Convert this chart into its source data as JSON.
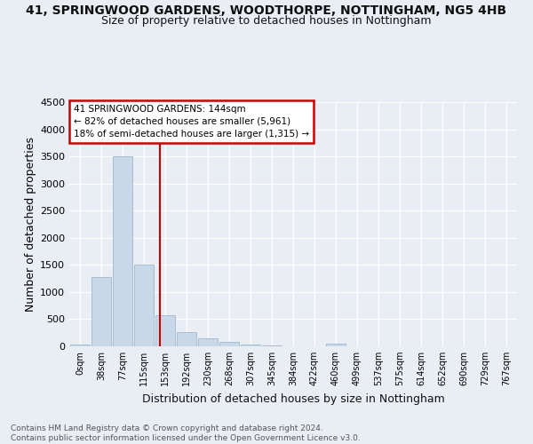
{
  "title1": "41, SPRINGWOOD GARDENS, WOODTHORPE, NOTTINGHAM, NG5 4HB",
  "title2": "Size of property relative to detached houses in Nottingham",
  "xlabel": "Distribution of detached houses by size in Nottingham",
  "ylabel": "Number of detached properties",
  "footnote": "Contains HM Land Registry data © Crown copyright and database right 2024.\nContains public sector information licensed under the Open Government Licence v3.0.",
  "bar_labels": [
    "0sqm",
    "38sqm",
    "77sqm",
    "115sqm",
    "153sqm",
    "192sqm",
    "230sqm",
    "268sqm",
    "307sqm",
    "345sqm",
    "384sqm",
    "422sqm",
    "460sqm",
    "499sqm",
    "537sqm",
    "575sqm",
    "614sqm",
    "652sqm",
    "690sqm",
    "729sqm",
    "767sqm"
  ],
  "bar_values": [
    30,
    1280,
    3500,
    1500,
    570,
    255,
    145,
    90,
    40,
    15,
    5,
    5,
    55,
    5,
    0,
    0,
    0,
    0,
    0,
    0,
    0
  ],
  "bar_color": "#c8d8e8",
  "bar_edge_color": "#a0b8cc",
  "annotation_text": "41 SPRINGWOOD GARDENS: 144sqm\n← 82% of detached houses are smaller (5,961)\n18% of semi-detached houses are larger (1,315) →",
  "annotation_box_color": "#ffffff",
  "annotation_box_edge": "#cc0000",
  "vline_color": "#cc0000",
  "vline_x_bin": 3.76,
  "ylim": [
    0,
    4500
  ],
  "background_color": "#e8eef4",
  "grid_color": "#ffffff",
  "title1_fontsize": 10,
  "title2_fontsize": 9,
  "xlabel_fontsize": 9,
  "ylabel_fontsize": 9,
  "footnote_fontsize": 6.5
}
